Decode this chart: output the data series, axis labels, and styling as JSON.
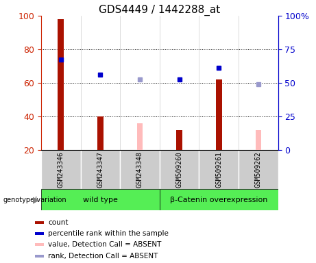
{
  "title": "GDS4449 / 1442288_at",
  "samples": [
    "GSM243346",
    "GSM243347",
    "GSM243348",
    "GSM509260",
    "GSM509261",
    "GSM509262"
  ],
  "bar_values": [
    98,
    40,
    null,
    32,
    62,
    null
  ],
  "absent_bar_values": [
    null,
    null,
    36,
    null,
    null,
    32
  ],
  "absent_bar_color": "#ffbbbb",
  "bar_color": "#aa1100",
  "blue_dots": [
    74,
    65,
    null,
    62,
    69,
    null
  ],
  "blue_dot_color": "#0000cc",
  "absent_dots": [
    null,
    null,
    62,
    null,
    null,
    59
  ],
  "absent_dot_color": "#9999cc",
  "ylim_left": [
    20,
    100
  ],
  "ylim_right": [
    0,
    100
  ],
  "left_yticks": [
    20,
    40,
    60,
    80,
    100
  ],
  "right_yticks": [
    0,
    25,
    50,
    75,
    100
  ],
  "right_yticklabels": [
    "0",
    "25",
    "50",
    "75",
    "100%"
  ],
  "grid_lines": [
    40,
    60,
    80
  ],
  "left_axis_color": "#cc2200",
  "right_axis_color": "#0000cc",
  "legend_items": [
    {
      "label": "count",
      "color": "#aa1100"
    },
    {
      "label": "percentile rank within the sample",
      "color": "#0000cc"
    },
    {
      "label": "value, Detection Call = ABSENT",
      "color": "#ffbbbb"
    },
    {
      "label": "rank, Detection Call = ABSENT",
      "color": "#9999cc"
    }
  ],
  "bar_width": 0.15,
  "group_label_color": "#55ee55",
  "sample_box_color": "#cccccc",
  "wt_label": "wild type",
  "bc_label": "β-Catenin overexpression",
  "genotype_label": "genotype/variation"
}
